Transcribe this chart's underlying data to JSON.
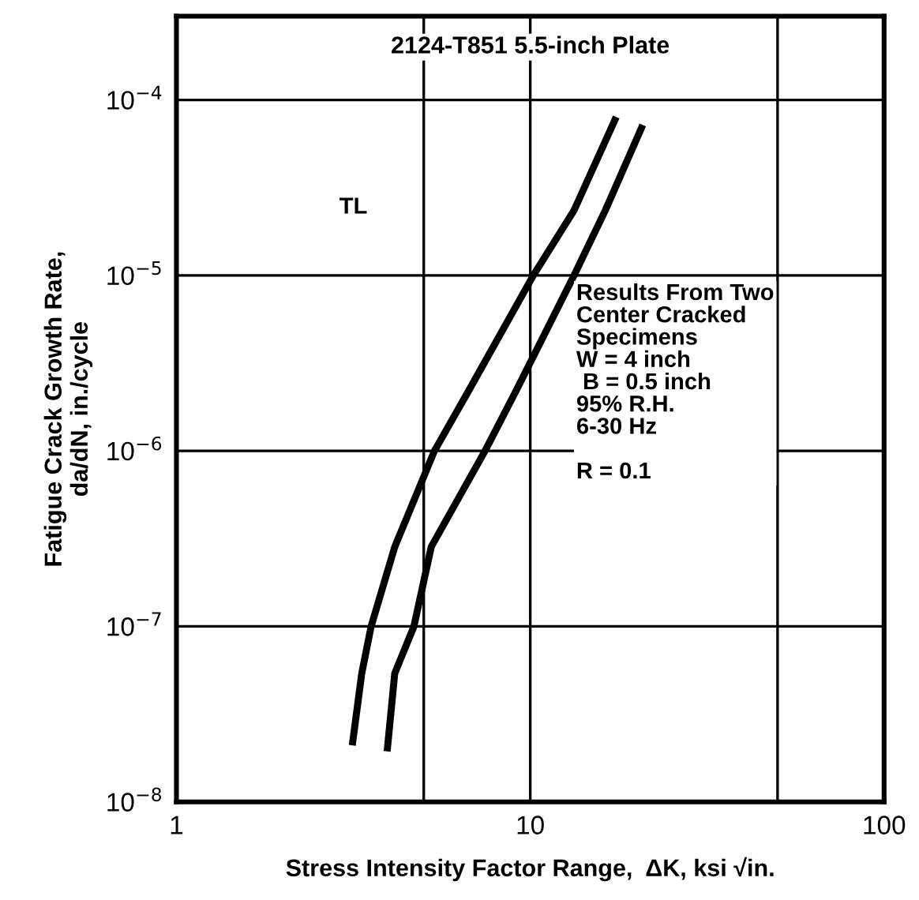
{
  "chart_data": {
    "type": "line",
    "title": "2124-T851 5.5-inch Plate",
    "xlabel": "Stress Intensity Factor Range,  ΔK, ksi √in.",
    "ylabel": "Fatigue Crack Growth Rate,\nda/dN, in./cycle",
    "annotations": [
      "TL",
      "Results From Two\nCenter Cracked\nSpecimens\nW = 4 inch\n B = 0.5 inch\n95% R.H.\n6-30 Hz\n\nR = 0.1"
    ],
    "series": [
      {
        "color": "#000000",
        "x": [
          3.14,
          3.34,
          3.55,
          4.14,
          5.36,
          6.73,
          10.2,
          13.3,
          17.5
        ],
        "values": [
          2.1e-08,
          5.4e-08,
          1e-07,
          2.84e-07,
          1e-06,
          2.24e-06,
          1e-05,
          2.35e-05,
          8e-05
        ]
      },
      {
        "color": "#000000",
        "x": [
          3.94,
          4.14,
          4.69,
          5.25,
          7.45,
          9.16,
          13.3,
          16.3,
          20.8
        ],
        "values": [
          1.94e-08,
          5.4e-08,
          1e-07,
          2.84e-07,
          1e-06,
          2.24e-06,
          1e-05,
          2.35e-05,
          7.2e-05
        ]
      }
    ],
    "log": "xy",
    "xlim": [
      1,
      100
    ],
    "ylim": [
      1e-08,
      0.0003
    ],
    "xticks": [
      1,
      {
        "value": 5,
        "label": null
      },
      10,
      {
        "value": 50,
        "label": null
      },
      100
    ],
    "yticks": [
      {
        "value": 1e-08,
        "label": "10$^{−8}$"
      },
      {
        "value": 1e-07,
        "label": "10$^{−7}$"
      },
      {
        "value": 1e-06,
        "label": "10$^{−6}$"
      },
      {
        "value": 1e-05,
        "label": "10$^{−5}$"
      },
      {
        "value": 0.0001,
        "label": "10$^{−4}$"
      }
    ],
    "grid": true,
    "line_style": "solid",
    "marker": "none"
  }
}
